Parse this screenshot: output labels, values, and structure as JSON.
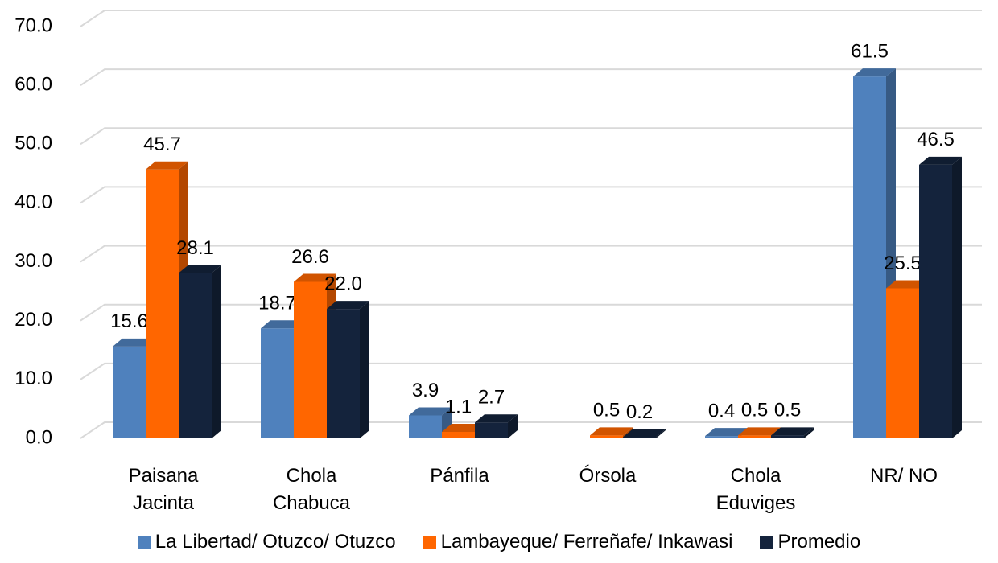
{
  "chart_data": {
    "type": "bar3d",
    "categories": [
      "Paisana Jacinta",
      "Chola Chabuca",
      "Pánfila",
      "Órsola",
      "Chola Eduviges",
      "NR/ NO"
    ],
    "series": [
      {
        "name": "La Libertad/ Otuzco/ Otuzco",
        "color": "#4f81bd",
        "values": [
          15.6,
          18.7,
          3.9,
          null,
          0.4,
          61.5
        ],
        "value_labels": [
          "15.6",
          "18.7",
          "3.9",
          null,
          "0.4",
          "61.5"
        ]
      },
      {
        "name": "Lambayeque/ Ferreñafe/ Inkawasi",
        "color": "#ff6600",
        "values": [
          45.7,
          26.6,
          1.1,
          0.5,
          0.5,
          25.5
        ],
        "value_labels": [
          "45.7",
          "26.6",
          "1.1",
          "0.5",
          "0.5",
          "25.5"
        ]
      },
      {
        "name": "Promedio",
        "color": "#14233c",
        "values": [
          28.1,
          22.0,
          2.7,
          0.2,
          0.5,
          46.5
        ],
        "value_labels": [
          "28.1",
          "22.0",
          "2.7",
          "0.2",
          "0.5",
          "46.5"
        ]
      }
    ],
    "ylim": [
      0,
      70
    ],
    "yticks": [
      {
        "value": 0,
        "label": "0.0"
      },
      {
        "value": 10,
        "label": "10.0"
      },
      {
        "value": 20,
        "label": "20.0"
      },
      {
        "value": 30,
        "label": "30.0"
      },
      {
        "value": 40,
        "label": "40.0"
      },
      {
        "value": 50,
        "label": "50.0"
      },
      {
        "value": 60,
        "label": "60.0"
      },
      {
        "value": 70,
        "label": "70.0"
      }
    ],
    "grid": true,
    "legend": "bottom"
  }
}
